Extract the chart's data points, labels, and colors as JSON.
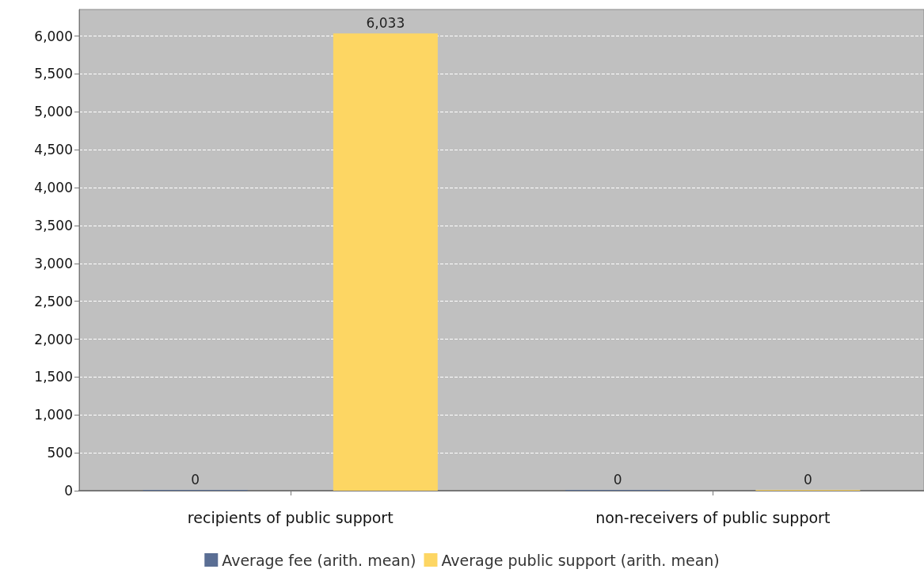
{
  "chart_data": {
    "type": "bar",
    "categories": [
      "recipients of public support",
      "non-receivers of public support"
    ],
    "series": [
      {
        "name": "Average fee (arith. mean)",
        "color": "#5a6e94",
        "values": [
          0,
          0
        ],
        "value_labels": [
          "0",
          "0"
        ]
      },
      {
        "name": "Average public support (arith. mean)",
        "color": "#fdd663",
        "values": [
          6033,
          0
        ],
        "value_labels": [
          "6,033",
          "0"
        ]
      }
    ],
    "ylim": [
      0,
      6350
    ],
    "yticks": [
      {
        "value": 0,
        "label": "0"
      },
      {
        "value": 500,
        "label": "500"
      },
      {
        "value": 1000,
        "label": "1,000"
      },
      {
        "value": 1500,
        "label": "1,500"
      },
      {
        "value": 2000,
        "label": "2,000"
      },
      {
        "value": 2500,
        "label": "2,500"
      },
      {
        "value": 3000,
        "label": "3,000"
      },
      {
        "value": 3500,
        "label": "3,500"
      },
      {
        "value": 4000,
        "label": "4,000"
      },
      {
        "value": 4500,
        "label": "4,500"
      },
      {
        "value": 5000,
        "label": "5,000"
      },
      {
        "value": 5500,
        "label": "5,500"
      },
      {
        "value": 6000,
        "label": "6,000"
      }
    ],
    "grid": "y",
    "legend": "bottom"
  }
}
